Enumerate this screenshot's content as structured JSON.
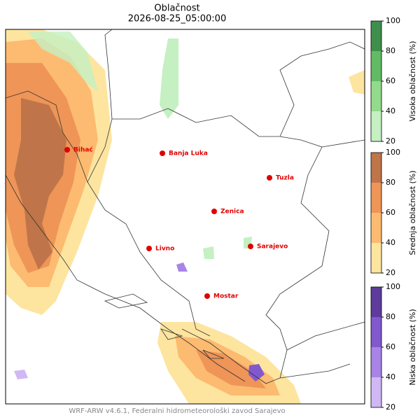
{
  "title": "Oblačnost",
  "subtitle": "2026-08-25_05:00:00",
  "cities": [
    "Bihać",
    "Banja Luka",
    "Tuzla",
    "Zenica",
    "Livno",
    "Sarajevo",
    "Mostar"
  ],
  "colorbars": [
    {
      "label": "Visoka oblačnost (%)",
      "colors": [
        "#c4f0c2",
        "#92da8c",
        "#62bb64",
        "#3f8f4c"
      ],
      "ticks": [
        20,
        40,
        60,
        80,
        100
      ]
    },
    {
      "label": "Srednja oblačnost (%)",
      "colors": [
        "#fde5a0",
        "#fcbb70",
        "#ee9557",
        "#bf7549"
      ],
      "ticks": [
        20,
        40,
        60,
        80,
        100
      ]
    },
    {
      "label": "Niska oblačnost (%)",
      "colors": [
        "#d0b8f5",
        "#a884e6",
        "#8258cf",
        "#5e3c9c"
      ],
      "ticks": [
        20,
        40,
        60,
        80,
        100
      ]
    }
  ],
  "footer": "WRF-ARW v4.6.1, Federalni hidrometeorološki zavod Sarajevo"
}
